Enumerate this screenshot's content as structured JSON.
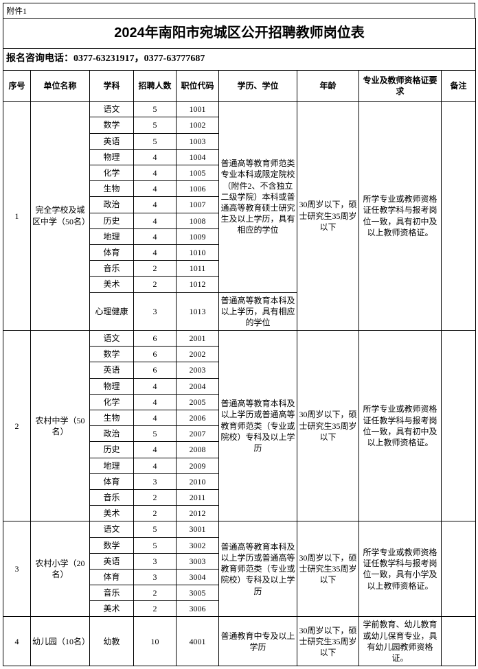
{
  "attachment_label": "附件1",
  "title": "2024年南阳市宛城区公开招聘教师岗位表",
  "contact": "报名咨询电话：0377-63231917，0377-63777687",
  "headers": {
    "seq": "序号",
    "unit": "单位名称",
    "subject": "学科",
    "count": "招聘人数",
    "code": "职位代码",
    "edu": "学历、学位",
    "age": "年龄",
    "req": "专业及教师资格证要求",
    "remark": "备注"
  },
  "groups": [
    {
      "seq": "1",
      "unit": "完全学校及城区中学（50名）",
      "age": "30周岁以下，硕士研究生35周岁以下",
      "req": "所学专业或教师资格证任教学科与报考岗位一致，具有初中及以上教师资格证。",
      "remark": "",
      "edu_blocks": [
        {
          "edu": "普通高等教育师范类专业本科或限定院校（附件2、不含独立二级学院）本科或普通高等教育硕士研究生及以上学历，具有相应的学位",
          "rows": [
            {
              "subject": "语文",
              "count": "5",
              "code": "1001"
            },
            {
              "subject": "数学",
              "count": "5",
              "code": "1002"
            },
            {
              "subject": "英语",
              "count": "5",
              "code": "1003"
            },
            {
              "subject": "物理",
              "count": "4",
              "code": "1004"
            },
            {
              "subject": "化学",
              "count": "4",
              "code": "1005"
            },
            {
              "subject": "生物",
              "count": "4",
              "code": "1006"
            },
            {
              "subject": "政治",
              "count": "4",
              "code": "1007"
            },
            {
              "subject": "历史",
              "count": "4",
              "code": "1008"
            },
            {
              "subject": "地理",
              "count": "4",
              "code": "1009"
            },
            {
              "subject": "体育",
              "count": "4",
              "code": "1010"
            },
            {
              "subject": "音乐",
              "count": "2",
              "code": "1011"
            },
            {
              "subject": "美术",
              "count": "2",
              "code": "1012"
            }
          ]
        },
        {
          "edu": "普通高等教育本科及以上学历，具有相应的学位",
          "rows": [
            {
              "subject": "心理健康",
              "count": "3",
              "code": "1013"
            }
          ]
        }
      ]
    },
    {
      "seq": "2",
      "unit": "农村中学（50名）",
      "age": "30周岁以下，硕士研究生35周岁以下",
      "req": "所学专业或教师资格证任教学科与报考岗位一致，具有初中及以上教师资格证。",
      "remark": "",
      "edu_blocks": [
        {
          "edu": "普通高等教育本科及以上学历或普通高等教育师范类（专业或院校）专科及以上学历",
          "rows": [
            {
              "subject": "语文",
              "count": "6",
              "code": "2001"
            },
            {
              "subject": "数学",
              "count": "6",
              "code": "2002"
            },
            {
              "subject": "英语",
              "count": "6",
              "code": "2003"
            },
            {
              "subject": "物理",
              "count": "4",
              "code": "2004"
            },
            {
              "subject": "化学",
              "count": "4",
              "code": "2005"
            },
            {
              "subject": "生物",
              "count": "4",
              "code": "2006"
            },
            {
              "subject": "政治",
              "count": "5",
              "code": "2007"
            },
            {
              "subject": "历史",
              "count": "4",
              "code": "2008"
            },
            {
              "subject": "地理",
              "count": "4",
              "code": "2009"
            },
            {
              "subject": "体育",
              "count": "3",
              "code": "2010"
            },
            {
              "subject": "音乐",
              "count": "2",
              "code": "2011"
            },
            {
              "subject": "美术",
              "count": "2",
              "code": "2012"
            }
          ]
        }
      ]
    },
    {
      "seq": "3",
      "unit": "农村小学（20名）",
      "age": "30周岁以下，硕士研究生35周岁以下",
      "req": "所学专业或教师资格证任教学科与报考岗位一致，具有小学及以上教师资格证。",
      "remark": "",
      "edu_blocks": [
        {
          "edu": "普通高等教育本科及以上学历或普通高等教育师范类（专业或院校）专科及以上学历",
          "rows": [
            {
              "subject": "语文",
              "count": "5",
              "code": "3001"
            },
            {
              "subject": "数学",
              "count": "5",
              "code": "3002"
            },
            {
              "subject": "英语",
              "count": "3",
              "code": "3003"
            },
            {
              "subject": "体育",
              "count": "3",
              "code": "3004"
            },
            {
              "subject": "音乐",
              "count": "2",
              "code": "3005"
            },
            {
              "subject": "美术",
              "count": "2",
              "code": "3006"
            }
          ]
        }
      ]
    },
    {
      "seq": "4",
      "unit": "幼儿园（10名）",
      "age": "30周岁以下，硕士研究生35周岁以下",
      "req": "学前教育、幼儿教育或幼儿保育专业，具有幼儿园教师资格证。",
      "remark": "",
      "edu_blocks": [
        {
          "edu": "普通教育中专及以上学历",
          "rows": [
            {
              "subject": "幼教",
              "count": "10",
              "code": "4001"
            }
          ]
        }
      ]
    }
  ]
}
